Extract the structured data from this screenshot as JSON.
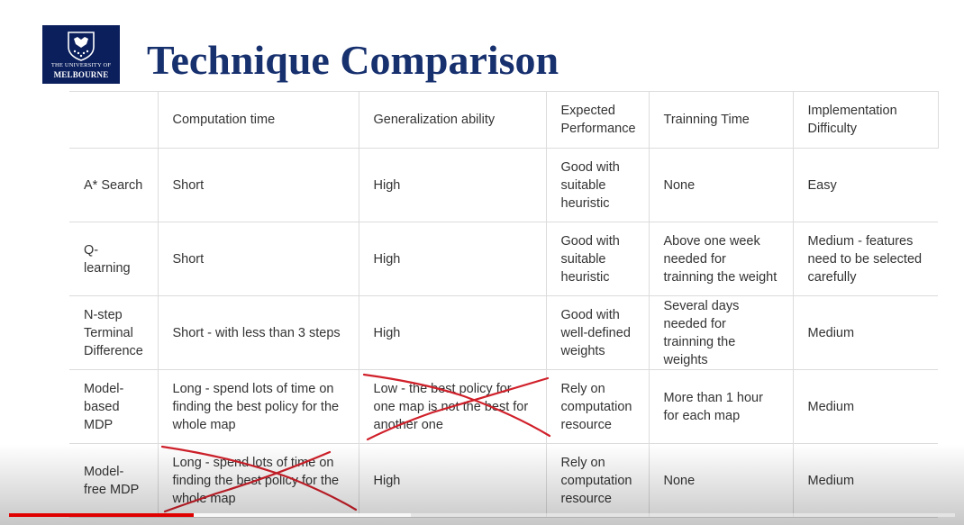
{
  "slide": {
    "logo_line1": "THE UNIVERSITY OF",
    "logo_line2": "MELBOURNE",
    "title": "Technique Comparison"
  },
  "table": {
    "headers": [
      "",
      "Computation time",
      "Generalization ability",
      "Expected Performance",
      "Trainning Time",
      "Implementation Difficulty"
    ],
    "rows": [
      [
        "A* Search",
        "Short",
        "High",
        "Good with suitable heuristic",
        "None",
        "Easy"
      ],
      [
        "Q-learning",
        "Short",
        "High",
        "Good with suitable heuristic",
        "Above one week needed for trainning the weight",
        "Medium - features need to be selected carefully"
      ],
      [
        "N-step Terminal Difference",
        "Short - with less than 3 steps",
        "High",
        "Good with well-defined weights",
        "Several days needed for trainning the weights",
        "Medium"
      ],
      [
        "Model-based MDP",
        "Long - spend lots of time on finding the best policy for the whole map",
        "Low - the best policy for one map is not the best for another one",
        "Rely on computation resource",
        "More than 1 hour for each map",
        "Medium"
      ],
      [
        "Model-free MDP",
        "Long - spend lots of time on finding the best policy for the whole map",
        "High",
        "Rely on computation resource",
        "None",
        "Medium"
      ]
    ]
  },
  "annotations": {
    "color": "#d0202a"
  },
  "player": {
    "played_fraction": 0.195,
    "buffered_fraction": 0.425,
    "played_color": "#e00000"
  }
}
